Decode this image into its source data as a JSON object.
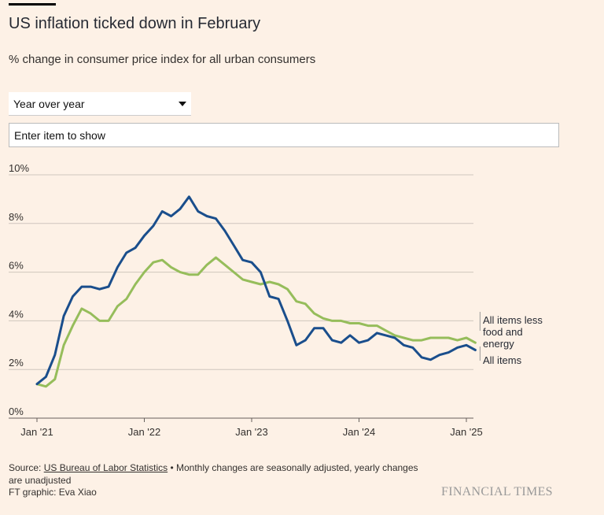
{
  "header": {
    "title": "US inflation ticked down in February",
    "subtitle": "% change in consumer price index for all urban consumers"
  },
  "controls": {
    "period_select": {
      "selected": "Year over year"
    },
    "item_search": {
      "placeholder": "Enter item to show",
      "value": ""
    }
  },
  "chart_data": {
    "type": "line",
    "ylim": [
      0,
      10
    ],
    "yticks": [
      0,
      2,
      4,
      6,
      8,
      10
    ],
    "ytick_labels": [
      "0%",
      "2%",
      "4%",
      "6%",
      "8%",
      "10%"
    ],
    "xtick_labels": [
      "Jan '21",
      "Jan '22",
      "Jan '23",
      "Jan '24",
      "Jan '25"
    ],
    "xticks": [
      "2021-01",
      "2022-01",
      "2023-01",
      "2024-01",
      "2025-01"
    ],
    "x": [
      "2021-01",
      "2021-02",
      "2021-03",
      "2021-04",
      "2021-05",
      "2021-06",
      "2021-07",
      "2021-08",
      "2021-09",
      "2021-10",
      "2021-11",
      "2021-12",
      "2022-01",
      "2022-02",
      "2022-03",
      "2022-04",
      "2022-05",
      "2022-06",
      "2022-07",
      "2022-08",
      "2022-09",
      "2022-10",
      "2022-11",
      "2022-12",
      "2023-01",
      "2023-02",
      "2023-03",
      "2023-04",
      "2023-05",
      "2023-06",
      "2023-07",
      "2023-08",
      "2023-09",
      "2023-10",
      "2023-11",
      "2023-12",
      "2024-01",
      "2024-02",
      "2024-03",
      "2024-04",
      "2024-05",
      "2024-06",
      "2024-07",
      "2024-08",
      "2024-09",
      "2024-10",
      "2024-11",
      "2024-12",
      "2025-01",
      "2025-02"
    ],
    "grid": true,
    "series": [
      {
        "name": "All items",
        "color": "#1a4e8c",
        "values": [
          1.4,
          1.7,
          2.6,
          4.2,
          5.0,
          5.4,
          5.4,
          5.3,
          5.4,
          6.2,
          6.8,
          7.0,
          7.5,
          7.9,
          8.5,
          8.3,
          8.6,
          9.1,
          8.5,
          8.3,
          8.2,
          7.7,
          7.1,
          6.5,
          6.4,
          6.0,
          5.0,
          4.9,
          4.0,
          3.0,
          3.2,
          3.7,
          3.7,
          3.2,
          3.1,
          3.4,
          3.1,
          3.2,
          3.5,
          3.4,
          3.3,
          3.0,
          2.9,
          2.5,
          2.4,
          2.6,
          2.7,
          2.9,
          3.0,
          2.8
        ]
      },
      {
        "name": "All items less food and energy",
        "color": "#96bd5b",
        "values": [
          1.4,
          1.3,
          1.6,
          3.0,
          3.8,
          4.5,
          4.3,
          4.0,
          4.0,
          4.6,
          4.9,
          5.5,
          6.0,
          6.4,
          6.5,
          6.2,
          6.0,
          5.9,
          5.9,
          6.3,
          6.6,
          6.3,
          6.0,
          5.7,
          5.6,
          5.5,
          5.6,
          5.5,
          5.3,
          4.8,
          4.7,
          4.3,
          4.1,
          4.0,
          4.0,
          3.9,
          3.9,
          3.8,
          3.8,
          3.6,
          3.4,
          3.3,
          3.2,
          3.2,
          3.3,
          3.3,
          3.3,
          3.2,
          3.3,
          3.1
        ]
      }
    ],
    "end_labels": [
      {
        "series": "All items less food and energy",
        "lines": [
          "All items less",
          "food and",
          "energy"
        ]
      },
      {
        "series": "All items",
        "lines": [
          "All items"
        ]
      }
    ]
  },
  "footer": {
    "source_prefix": "Source: ",
    "source_link": "US Bureau of Labor Statistics",
    "note": " • Monthly changes are seasonally adjusted, yearly changes are unadjusted",
    "credit": "FT graphic: Eva Xiao",
    "brand": "FINANCIAL TIMES"
  }
}
